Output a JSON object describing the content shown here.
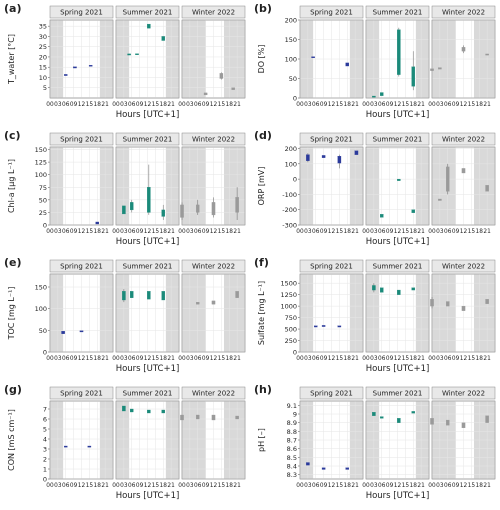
{
  "figure": {
    "x_title": "Hours [UTC+1]",
    "x_ticks": [
      "00",
      "03",
      "06",
      "09",
      "12",
      "15",
      "18",
      "21"
    ],
    "facets": [
      "Spring 2021",
      "Summer 2021",
      "Winter 2022"
    ],
    "colors": {
      "spring": "#2b3a9b",
      "summer": "#1b8a7a",
      "winter": "#9a9a9a",
      "night": "#d9d9d9",
      "strip": "#e8e8e8",
      "grid": "#e6e6e6"
    }
  },
  "chart_data": [
    {
      "type": "box",
      "tag": "(a)",
      "ylabel": "T_water [°C]",
      "ylim": [
        0,
        38
      ],
      "yticks": [
        5,
        10,
        15,
        20,
        25,
        30,
        35
      ],
      "night": [
        [
          [
            0,
            5
          ],
          [
            19,
            24
          ]
        ],
        [
          [
            0,
            5
          ],
          [
            19,
            24
          ]
        ],
        [
          [
            0,
            9
          ],
          [
            16,
            24
          ]
        ]
      ],
      "series": [
        {
          "facet": 0,
          "boxes": [
            {
              "x": 6,
              "lo": 11.0,
              "hi": 11.5
            },
            {
              "x": 9.5,
              "lo": 14.6,
              "hi": 15.2
            },
            {
              "x": 15.5,
              "lo": 15.5,
              "hi": 16.0
            }
          ]
        },
        {
          "facet": 1,
          "boxes": [
            {
              "x": 5,
              "lo": 21.0,
              "hi": 21.5
            },
            {
              "x": 8,
              "lo": 21.2,
              "hi": 21.6
            },
            {
              "x": 12.5,
              "lo": 34.0,
              "hi": 36.0
            },
            {
              "x": 18,
              "lo": 28.0,
              "hi": 30.0
            }
          ]
        },
        {
          "facet": 2,
          "boxes": [
            {
              "x": 9,
              "lo": 1.5,
              "hi": 2.5
            },
            {
              "x": 15,
              "lo": 9.5,
              "hi": 12.0,
              "wlo": 9.0,
              "whi": 12.5
            },
            {
              "x": 19.5,
              "lo": 4.0,
              "hi": 5.0
            }
          ]
        }
      ]
    },
    {
      "type": "box",
      "tag": "(b)",
      "ylabel": "DO [%]",
      "ylim": [
        0,
        200
      ],
      "yticks": [
        0,
        50,
        100,
        150,
        200
      ],
      "night": [
        [
          [
            0,
            5
          ],
          [
            19,
            24
          ]
        ],
        [
          [
            0,
            5
          ],
          [
            19,
            24
          ]
        ],
        [
          [
            0,
            9
          ],
          [
            16,
            24
          ]
        ]
      ],
      "series": [
        {
          "facet": 0,
          "boxes": [
            {
              "x": 5,
              "lo": 104,
              "hi": 106
            },
            {
              "x": 18,
              "lo": 82,
              "hi": 90
            }
          ]
        },
        {
          "facet": 1,
          "boxes": [
            {
              "x": 3,
              "lo": 2,
              "hi": 5
            },
            {
              "x": 6,
              "lo": 6,
              "hi": 14
            },
            {
              "x": 12.5,
              "lo": 60,
              "hi": 175,
              "wlo": 55,
              "whi": 180
            },
            {
              "x": 18,
              "lo": 30,
              "hi": 80,
              "wlo": 20,
              "whi": 120
            }
          ]
        },
        {
          "facet": 2,
          "boxes": [
            {
              "x": 0,
              "lo": 70,
              "hi": 75
            },
            {
              "x": 3,
              "lo": 74,
              "hi": 78
            },
            {
              "x": 12,
              "lo": 120,
              "hi": 130,
              "wlo": 115,
              "whi": 135
            },
            {
              "x": 21,
              "lo": 110,
              "hi": 113
            }
          ]
        }
      ]
    },
    {
      "type": "box",
      "tag": "(c)",
      "ylabel": "Chl-a [µg L⁻¹]",
      "ylim": [
        0,
        155
      ],
      "yticks": [
        0,
        25,
        50,
        75,
        100,
        125,
        150
      ],
      "night": [
        [
          [
            0,
            5
          ],
          [
            19,
            24
          ]
        ],
        [
          [
            0,
            5
          ],
          [
            19,
            24
          ]
        ],
        [
          [
            0,
            9
          ],
          [
            16,
            24
          ]
        ]
      ],
      "series": [
        {
          "facet": 0,
          "boxes": [
            {
              "x": 18,
              "lo": 2,
              "hi": 6
            }
          ]
        },
        {
          "facet": 1,
          "boxes": [
            {
              "x": 3,
              "lo": 22,
              "hi": 38
            },
            {
              "x": 6,
              "lo": 30,
              "hi": 45,
              "wlo": 25,
              "whi": 50
            },
            {
              "x": 12.5,
              "lo": 25,
              "hi": 75,
              "wlo": 20,
              "whi": 120
            },
            {
              "x": 18,
              "lo": 17,
              "hi": 30,
              "wlo": 10,
              "whi": 40
            }
          ]
        },
        {
          "facet": 2,
          "boxes": [
            {
              "x": 0,
              "lo": 15,
              "hi": 40,
              "wlo": 10,
              "whi": 45
            },
            {
              "x": 6,
              "lo": 25,
              "hi": 40,
              "wlo": 20,
              "whi": 50
            },
            {
              "x": 12,
              "lo": 20,
              "hi": 45,
              "wlo": 15,
              "whi": 55
            },
            {
              "x": 21,
              "lo": 25,
              "hi": 55,
              "wlo": 10,
              "whi": 75
            }
          ]
        }
      ]
    },
    {
      "type": "box",
      "tag": "(d)",
      "ylabel": "ORP [mV]",
      "ylim": [
        -300,
        210
      ],
      "yticks": [
        -300,
        -200,
        -100,
        0,
        100,
        200
      ],
      "night": [
        [
          [
            0,
            5
          ],
          [
            19,
            24
          ]
        ],
        [
          [
            0,
            5
          ],
          [
            19,
            24
          ]
        ],
        [
          [
            0,
            9
          ],
          [
            16,
            24
          ]
        ]
      ],
      "series": [
        {
          "facet": 0,
          "boxes": [
            {
              "x": 3,
              "lo": 120,
              "hi": 160,
              "wlo": 110,
              "whi": 170
            },
            {
              "x": 9,
              "lo": 140,
              "hi": 155
            },
            {
              "x": 15,
              "lo": 105,
              "hi": 150,
              "wlo": 70,
              "whi": 160
            },
            {
              "x": 21.5,
              "lo": 160,
              "hi": 185
            }
          ]
        },
        {
          "facet": 1,
          "boxes": [
            {
              "x": 6,
              "lo": -250,
              "hi": -230
            },
            {
              "x": 12.5,
              "lo": -10,
              "hi": 0
            },
            {
              "x": 18,
              "lo": -220,
              "hi": -200
            }
          ]
        },
        {
          "facet": 2,
          "boxes": [
            {
              "x": 3,
              "lo": -140,
              "hi": -130
            },
            {
              "x": 6,
              "lo": -80,
              "hi": 80,
              "wlo": -100,
              "whi": 100
            },
            {
              "x": 12,
              "lo": 40,
              "hi": 70
            },
            {
              "x": 21,
              "lo": -80,
              "hi": -40
            }
          ]
        }
      ]
    },
    {
      "type": "box",
      "tag": "(e)",
      "ylabel": "TOC [mg L⁻¹]",
      "ylim": [
        0,
        180
      ],
      "yticks": [
        0,
        50,
        100,
        150
      ],
      "night": [
        [
          [
            0,
            5
          ],
          [
            19,
            24
          ]
        ],
        [
          [
            0,
            5
          ],
          [
            19,
            24
          ]
        ],
        [
          [
            0,
            9
          ],
          [
            16,
            24
          ]
        ]
      ],
      "series": [
        {
          "facet": 0,
          "boxes": [
            {
              "x": 5,
              "lo": 42,
              "hi": 48
            },
            {
              "x": 12,
              "lo": 48,
              "hi": 49
            }
          ]
        },
        {
          "facet": 1,
          "boxes": [
            {
              "x": 3,
              "lo": 120,
              "hi": 140,
              "wlo": 115,
              "whi": 145
            },
            {
              "x": 6,
              "lo": 125,
              "hi": 140
            },
            {
              "x": 12.5,
              "lo": 122,
              "hi": 140
            },
            {
              "x": 18,
              "lo": 120,
              "hi": 140
            }
          ]
        },
        {
          "facet": 2,
          "boxes": [
            {
              "x": 6,
              "lo": 110,
              "hi": 115
            },
            {
              "x": 12,
              "lo": 110,
              "hi": 118
            },
            {
              "x": 21,
              "lo": 125,
              "hi": 140
            }
          ]
        }
      ]
    },
    {
      "type": "box",
      "tag": "(f)",
      "ylabel": "Sulfate [mg L⁻¹]",
      "ylim": [
        0,
        1700
      ],
      "yticks": [
        0,
        250,
        500,
        750,
        1000,
        1250,
        1500
      ],
      "night": [
        [
          [
            0,
            5
          ],
          [
            19,
            24
          ]
        ],
        [
          [
            0,
            5
          ],
          [
            19,
            24
          ]
        ],
        [
          [
            0,
            9
          ],
          [
            16,
            24
          ]
        ]
      ],
      "series": [
        {
          "facet": 0,
          "boxes": [
            {
              "x": 6,
              "lo": 560,
              "hi": 570
            },
            {
              "x": 9,
              "lo": 575,
              "hi": 580
            },
            {
              "x": 15,
              "lo": 560,
              "hi": 570
            }
          ]
        },
        {
          "facet": 1,
          "boxes": [
            {
              "x": 3,
              "lo": 1350,
              "hi": 1450,
              "wlo": 1300,
              "whi": 1500
            },
            {
              "x": 6,
              "lo": 1300,
              "hi": 1400
            },
            {
              "x": 12.5,
              "lo": 1250,
              "hi": 1350
            },
            {
              "x": 18,
              "lo": 1350,
              "hi": 1400
            }
          ]
        },
        {
          "facet": 2,
          "boxes": [
            {
              "x": 0,
              "lo": 1000,
              "hi": 1150,
              "wlo": 950,
              "whi": 1200
            },
            {
              "x": 6,
              "lo": 1000,
              "hi": 1100
            },
            {
              "x": 12,
              "lo": 900,
              "hi": 1000
            },
            {
              "x": 21,
              "lo": 1050,
              "hi": 1150
            }
          ]
        }
      ]
    },
    {
      "type": "box",
      "tag": "(g)",
      "ylabel": "CON [mS cm⁻¹]",
      "ylim": [
        0,
        7.8
      ],
      "yticks": [
        0,
        1,
        2,
        3,
        4,
        5,
        6,
        7
      ],
      "night": [
        [
          [
            0,
            5
          ],
          [
            19,
            24
          ]
        ],
        [
          [
            0,
            5
          ],
          [
            19,
            24
          ]
        ],
        [
          [
            0,
            9
          ],
          [
            16,
            24
          ]
        ]
      ],
      "series": [
        {
          "facet": 0,
          "boxes": [
            {
              "x": 6,
              "lo": 3.2,
              "hi": 3.3
            },
            {
              "x": 15,
              "lo": 3.2,
              "hi": 3.3
            }
          ]
        },
        {
          "facet": 1,
          "boxes": [
            {
              "x": 3,
              "lo": 6.8,
              "hi": 7.3
            },
            {
              "x": 6,
              "lo": 6.7,
              "hi": 7.0
            },
            {
              "x": 12.5,
              "lo": 6.6,
              "hi": 6.9
            },
            {
              "x": 18,
              "lo": 6.6,
              "hi": 6.9
            }
          ]
        },
        {
          "facet": 2,
          "boxes": [
            {
              "x": 0,
              "lo": 5.9,
              "hi": 6.4
            },
            {
              "x": 6,
              "lo": 6.0,
              "hi": 6.4
            },
            {
              "x": 12,
              "lo": 5.9,
              "hi": 6.4
            },
            {
              "x": 21,
              "lo": 6.0,
              "hi": 6.3
            }
          ]
        }
      ]
    },
    {
      "type": "box",
      "tag": "(h)",
      "ylabel": "pH [–]",
      "ylim": [
        8.25,
        9.15
      ],
      "yticks": [
        8.3,
        8.4,
        8.5,
        8.6,
        8.7,
        8.8,
        8.9,
        9.0,
        9.1
      ],
      "night": [
        [
          [
            0,
            5
          ],
          [
            19,
            24
          ]
        ],
        [
          [
            0,
            5
          ],
          [
            19,
            24
          ]
        ],
        [
          [
            0,
            9
          ],
          [
            16,
            24
          ]
        ]
      ],
      "series": [
        {
          "facet": 0,
          "boxes": [
            {
              "x": 3,
              "lo": 8.41,
              "hi": 8.44
            },
            {
              "x": 9,
              "lo": 8.36,
              "hi": 8.38
            },
            {
              "x": 18,
              "lo": 8.36,
              "hi": 8.38
            }
          ]
        },
        {
          "facet": 1,
          "boxes": [
            {
              "x": 3,
              "lo": 8.98,
              "hi": 9.02
            },
            {
              "x": 6,
              "lo": 8.95,
              "hi": 8.97
            },
            {
              "x": 12.5,
              "lo": 8.9,
              "hi": 8.95
            },
            {
              "x": 18,
              "lo": 9.01,
              "hi": 9.03
            }
          ]
        },
        {
          "facet": 2,
          "boxes": [
            {
              "x": 0,
              "lo": 8.88,
              "hi": 8.95
            },
            {
              "x": 6,
              "lo": 8.87,
              "hi": 8.93
            },
            {
              "x": 12,
              "lo": 8.84,
              "hi": 8.9
            },
            {
              "x": 21,
              "lo": 8.9,
              "hi": 8.98
            }
          ]
        }
      ]
    }
  ]
}
